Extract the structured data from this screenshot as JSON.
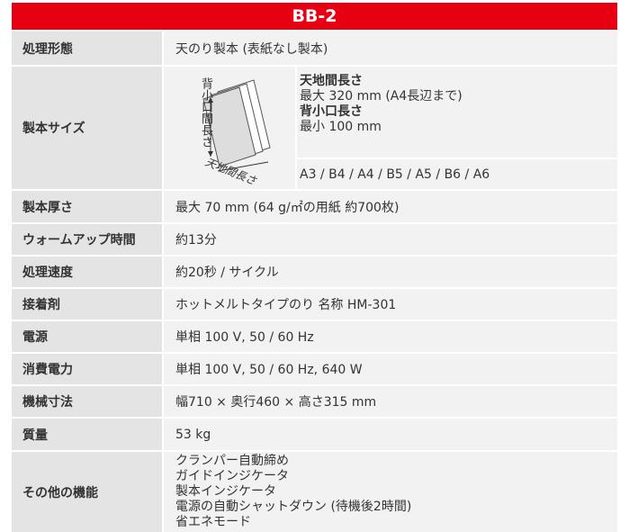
{
  "header": {
    "title": "BB-2"
  },
  "table": {
    "rows": [
      {
        "label": "処理形態",
        "value": "天のり製本 (表紙なし製本)"
      },
      {
        "label": "製本サイズ",
        "figure": {
          "vertical_label": "背小口間長さ",
          "diagonal_label": "天地間長さ"
        },
        "lines": [
          "天地間長さ",
          "最大 320 mm (A4長辺まで)",
          "背小口長さ",
          "最小 100 mm"
        ],
        "sizes": "A3 / B4 / A4 / B5 / A5 / B6 / A6"
      },
      {
        "label": "製本厚さ",
        "value": "最大 70 mm (64 g/㎡の用紙 約700枚)"
      },
      {
        "label": "ウォームアップ時間",
        "value": "約13分"
      },
      {
        "label": "処理速度",
        "value": "約20秒 / サイクル"
      },
      {
        "label": "接着剤",
        "value": "ホットメルトタイプのり 名称 HM-301"
      },
      {
        "label": "電源",
        "value": "単相 100 V, 50 / 60 Hz"
      },
      {
        "label": "消費電力",
        "value": "単相 100 V, 50 / 60 Hz, 640 W"
      },
      {
        "label": "機械寸法",
        "value": "幅710 × 奥行460 × 高さ315 mm"
      },
      {
        "label": "質量",
        "value": "53 kg"
      },
      {
        "label": "その他の機能",
        "lines": [
          "クランパー自動締め",
          "ガイドインジケータ",
          "製本インジケータ",
          "電源の自動シャットダウン (待機後2時間)",
          "省エネモード"
        ]
      }
    ]
  }
}
